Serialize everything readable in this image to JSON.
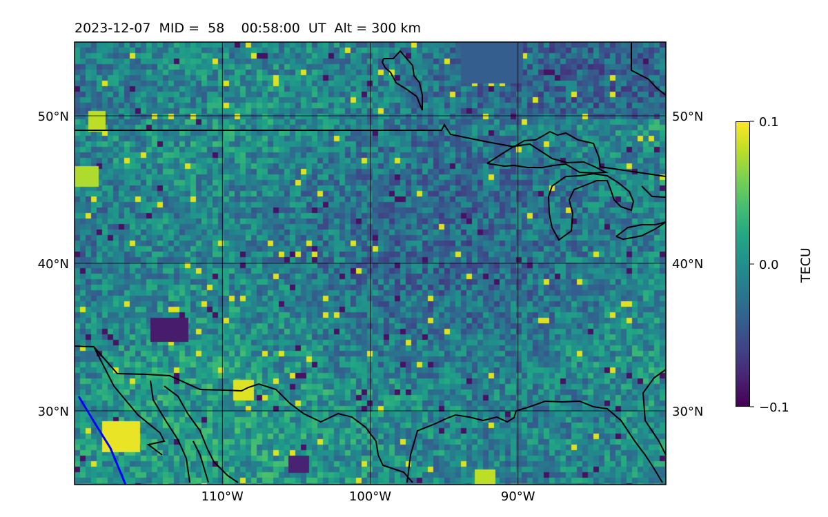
{
  "title": "2023-12-07  MID =  58    00:58:00  UT  Alt = 300 km",
  "map": {
    "lat_range": [
      25,
      55
    ],
    "lon_range": [
      -120,
      -80
    ],
    "lat_ticks": [
      {
        "value": 30,
        "label": "30°N"
      },
      {
        "value": 40,
        "label": "40°N"
      },
      {
        "value": 50,
        "label": "50°N"
      }
    ],
    "lon_ticks": [
      {
        "value": -110,
        "label": "110°W"
      },
      {
        "value": -100,
        "label": "100°W"
      },
      {
        "value": -90,
        "label": "90°W"
      }
    ],
    "gridlines": true,
    "colormap": "viridis",
    "coastline_color": "#000000",
    "track_color": "#0000ff"
  },
  "colorbar": {
    "label": "TECU",
    "min": -0.1,
    "max": 0.1,
    "ticks": [
      {
        "value": 0.1,
        "label": "0.1"
      },
      {
        "value": 0.0,
        "label": "0.0"
      },
      {
        "value": -0.1,
        "label": "−0.1"
      }
    ]
  }
}
